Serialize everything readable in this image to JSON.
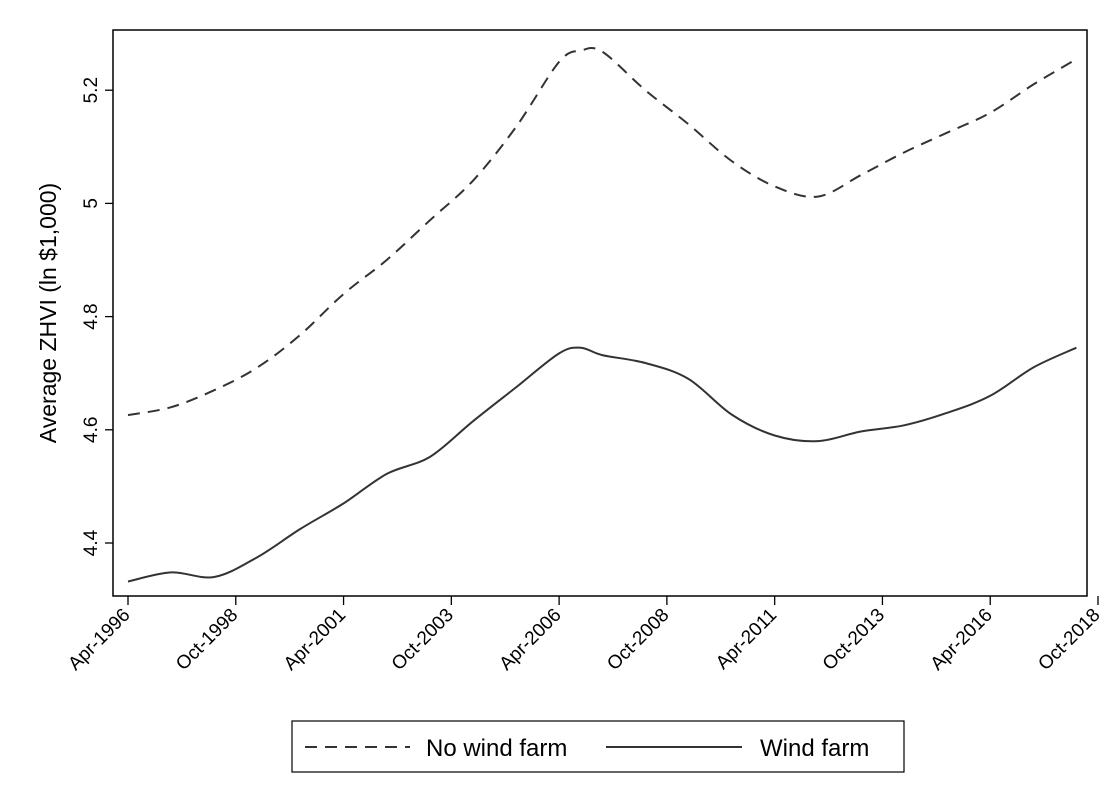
{
  "chart_data": {
    "type": "line",
    "title": "",
    "xlabel": "",
    "ylabel": "Average ZHVI (ln $1,000)",
    "x_ticks": [
      "Apr-1996",
      "Oct-1998",
      "Apr-2001",
      "Oct-2003",
      "Apr-2006",
      "Oct-2008",
      "Apr-2011",
      "Oct-2013",
      "Apr-2016",
      "Oct-2018"
    ],
    "y_ticks": [
      "4.4",
      "4.6",
      "4.8",
      "5",
      "5.2"
    ],
    "xlim": [
      "1996-04",
      "2018-10"
    ],
    "ylim": [
      4.31,
      5.3
    ],
    "grid": false,
    "legend_position": "bottom",
    "x": [
      "1996-04",
      "1997-04",
      "1998-04",
      "1999-04",
      "2000-04",
      "2001-04",
      "2002-04",
      "2003-04",
      "2004-04",
      "2005-04",
      "2006-04",
      "2006-10",
      "2007-04",
      "2008-04",
      "2009-04",
      "2010-04",
      "2011-04",
      "2012-04",
      "2013-04",
      "2014-04",
      "2015-04",
      "2016-04",
      "2017-04",
      "2018-04"
    ],
    "series": [
      {
        "name": "No wind farm",
        "style": "dashed",
        "color": "#333333",
        "values": [
          4.626,
          4.64,
          4.67,
          4.71,
          4.768,
          4.84,
          4.9,
          4.97,
          5.04,
          5.135,
          5.25,
          5.27,
          5.268,
          5.2,
          5.14,
          5.075,
          5.03,
          5.012,
          5.05,
          5.09,
          5.125,
          5.16,
          5.21,
          5.255
        ]
      },
      {
        "name": "Wind farm",
        "style": "solid",
        "color": "#333333",
        "values": [
          4.332,
          4.348,
          4.34,
          4.375,
          4.425,
          4.47,
          4.522,
          4.552,
          4.615,
          4.675,
          4.735,
          4.745,
          4.732,
          4.718,
          4.69,
          4.627,
          4.59,
          4.58,
          4.597,
          4.608,
          4.63,
          4.66,
          4.71,
          4.745
        ]
      }
    ]
  }
}
